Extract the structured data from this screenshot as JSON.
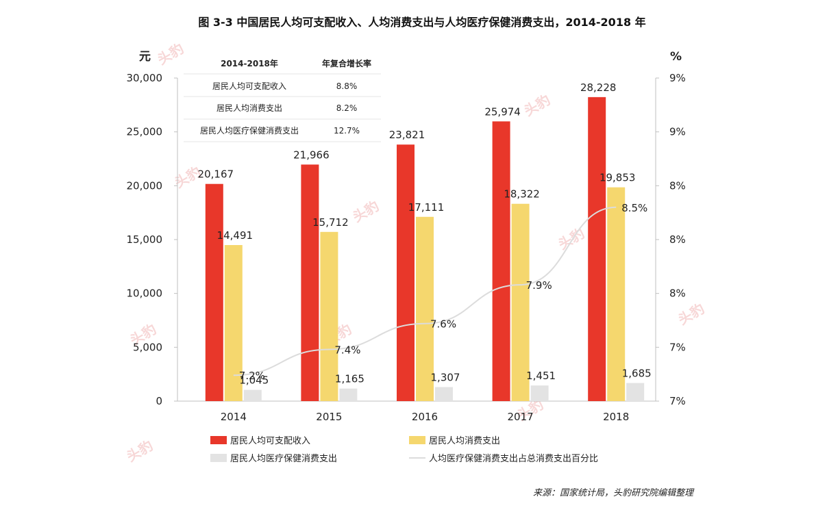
{
  "chart_data": {
    "type": "bar",
    "title": "图 3-3 中国居民人均可支配收入、人均消费支出与人均医疗保健消费支出，2014-2018 年",
    "categories": [
      "2014",
      "2015",
      "2016",
      "2017",
      "2018"
    ],
    "y_left_unit": "元",
    "y_right_unit": "%",
    "y_left_ticks": [
      "0",
      "5,000",
      "10,000",
      "15,000",
      "20,000",
      "25,000",
      "30,000"
    ],
    "y_right_ticks": [
      "7%",
      "7%",
      "8%",
      "8%",
      "8%",
      "9%",
      "9%"
    ],
    "ylim": [
      0,
      30000
    ],
    "y2lim": [
      7.0,
      9.5
    ],
    "series": [
      {
        "name": "居民人均可支配收入",
        "type": "bar",
        "color": "#e8372a",
        "values": [
          20167,
          21966,
          23821,
          25974,
          28228
        ],
        "labels": [
          "20,167",
          "21,966",
          "23,821",
          "25,974",
          "28,228"
        ]
      },
      {
        "name": "居民人均消费支出",
        "type": "bar",
        "color": "#f5d76e",
        "values": [
          14491,
          15712,
          17111,
          18322,
          19853
        ],
        "labels": [
          "14,491",
          "15,712",
          "17,111",
          "18,322",
          "19,853"
        ]
      },
      {
        "name": "居民人均医疗保健消费支出",
        "type": "bar",
        "color": "#e3e3e3",
        "values": [
          1045,
          1165,
          1307,
          1451,
          1685
        ],
        "labels": [
          "1,045",
          "1,165",
          "1,307",
          "1,451",
          "1,685"
        ]
      },
      {
        "name": "人均医疗保健消费支出占总消费支出百分比",
        "type": "line",
        "axis": "right",
        "color": "#dcdcdc",
        "values": [
          7.2,
          7.4,
          7.6,
          7.9,
          8.5
        ],
        "labels": [
          "7.2%",
          "7.4%",
          "7.6%",
          "7.9%",
          "8.5%"
        ]
      }
    ],
    "legend_position": "bottom",
    "grid": false,
    "inset_table": {
      "headers": [
        "2014-2018年",
        "年复合增长率"
      ],
      "rows": [
        [
          "居民人均可支配收入",
          "8.8%"
        ],
        [
          "居民人均消费支出",
          "8.2%"
        ],
        [
          "居民人均医疗保健消费支出",
          "12.7%"
        ]
      ]
    }
  },
  "source": "来源：国家统计局，头豹研究院编辑整理",
  "watermark": "头豹"
}
